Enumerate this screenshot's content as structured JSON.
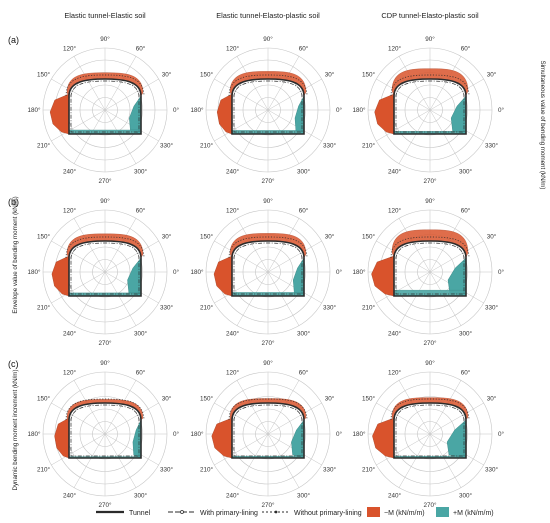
{
  "columns": [
    "Elastic tunnel-Elastic soil",
    "Elastic tunnel-Elasto-plastic soil",
    "CDP tunnel-Elasto-plastic soil"
  ],
  "rows": [
    {
      "label": "(a)",
      "ylabel": "Simultaneous value of bending moment (kN/m)"
    },
    {
      "label": "(b)",
      "ylabel": "Envelope value of bending moment (kN/m)"
    },
    {
      "label": "(c)",
      "ylabel": "Dynamic bending moment increment (kN/m)"
    }
  ],
  "angle_labels": [
    "0°",
    "30°",
    "60°",
    "90°",
    "120°",
    "150°",
    "180°",
    "210°",
    "240°",
    "270°",
    "300°",
    "330°"
  ],
  "legend": {
    "tunnel": "Tunnel",
    "with_lining": "With primary-lining",
    "without_lining": "Without primary-lining",
    "neg": "−M (kN/m/m)",
    "pos": "+M (kN/m/m)"
  },
  "colors": {
    "neg": "#d9532c",
    "pos": "#4aa6a4",
    "grid": "#c4c4c4",
    "tunnel": "#2b2b2b"
  },
  "chart_data": {
    "type": "polar",
    "grid": true,
    "panels": [
      {
        "row": "(a)",
        "col": "Elastic tunnel-Elastic soil",
        "neg": {
          "left_wall": 420,
          "roof": 140
        },
        "pos": {
          "right_wall": 260,
          "floor": 90
        }
      },
      {
        "row": "(a)",
        "col": "Elastic tunnel-Elasto-plastic soil",
        "neg": {
          "left_wall": 330,
          "roof": 170
        },
        "pos": {
          "right_wall": 200,
          "floor": 80
        }
      },
      {
        "row": "(a)",
        "col": "CDP tunnel-Elasto-plastic soil",
        "neg": {
          "left_wall": 430,
          "roof": 230
        },
        "pos": {
          "right_wall": 330,
          "floor": 60
        }
      },
      {
        "row": "(b)",
        "col": "Elastic tunnel-Elastic soil",
        "neg": {
          "left_wall": 380,
          "roof": 160
        },
        "pos": {
          "right_wall": 300,
          "floor": 70
        }
      },
      {
        "row": "(b)",
        "col": "Elastic tunnel-Elasto-plastic soil",
        "neg": {
          "left_wall": 400,
          "roof": 170
        },
        "pos": {
          "right_wall": 240,
          "floor": 80
        }
      },
      {
        "row": "(b)",
        "col": "CDP tunnel-Elasto-plastic soil",
        "neg": {
          "left_wall": 500,
          "roof": 250
        },
        "pos": {
          "right_wall": 400,
          "floor": 130
        }
      },
      {
        "row": "(c)",
        "col": "Elastic tunnel-Elastic soil",
        "neg": {
          "left_wall": 320,
          "roof": 80
        },
        "pos": {
          "right_wall": 180,
          "floor": 30
        }
      },
      {
        "row": "(c)",
        "col": "Elastic tunnel-Elasto-plastic soil",
        "neg": {
          "left_wall": 450,
          "roof": 100
        },
        "pos": {
          "right_wall": 280,
          "floor": 40
        }
      },
      {
        "row": "(c)",
        "col": "CDP tunnel-Elasto-plastic soil",
        "neg": {
          "left_wall": 480,
          "roof": 120
        },
        "pos": {
          "right_wall": 420,
          "floor": 40
        }
      }
    ]
  }
}
